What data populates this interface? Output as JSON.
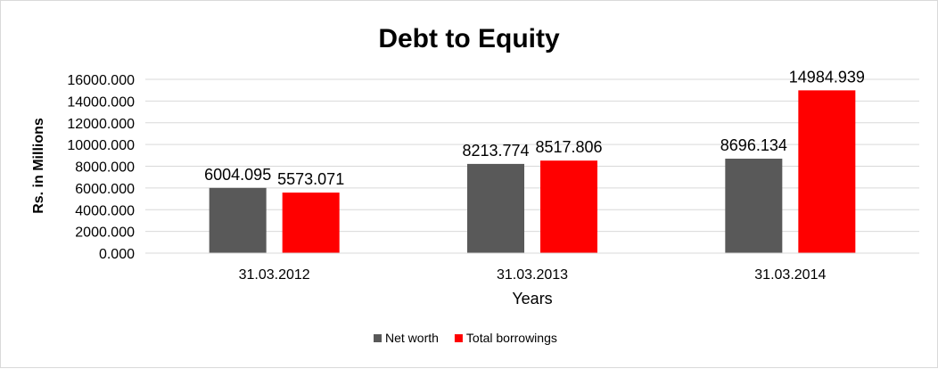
{
  "chart_data": {
    "type": "bar",
    "title": "Debt to Equity",
    "xlabel": "Years",
    "ylabel": "Rs. in Millions",
    "categories": [
      "31.03.2012",
      "31.03.2013",
      "31.03.2014"
    ],
    "series": [
      {
        "name": "Net worth",
        "values": [
          6004.095,
          8213.774,
          8696.134
        ],
        "color": "#595959"
      },
      {
        "name": "Total borrowings",
        "values": [
          5573.071,
          8517.806,
          14984.939
        ],
        "color": "#ff0000"
      }
    ],
    "data_labels": [
      [
        "6004.095",
        "8213.774",
        "8696.134"
      ],
      [
        "5573.071",
        "8517.806",
        "14984.939"
      ]
    ],
    "ylim": [
      0,
      16000
    ],
    "yticks": [
      0,
      2000,
      4000,
      6000,
      8000,
      10000,
      12000,
      14000,
      16000
    ],
    "ytick_labels": [
      "0.000",
      "2000.000",
      "4000.000",
      "6000.000",
      "8000.000",
      "10000.000",
      "12000.000",
      "14000.000",
      "16000.000"
    ],
    "grid": true,
    "legend_position": "bottom"
  }
}
